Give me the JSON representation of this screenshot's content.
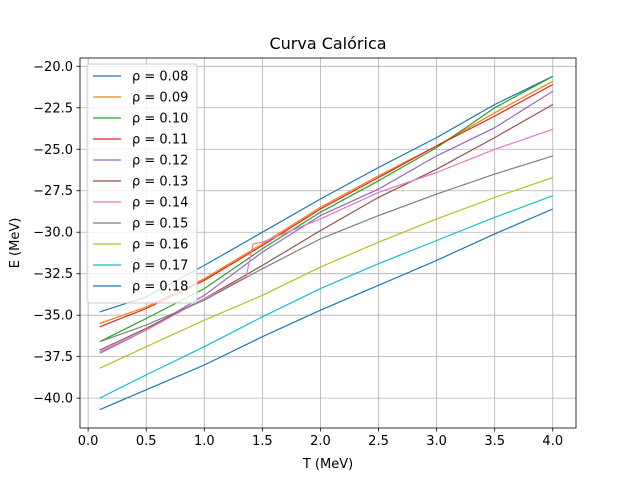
{
  "chart_data": {
    "type": "line",
    "title": "Curva Calórica",
    "xlabel": "T (MeV)",
    "ylabel": "E (MeV)",
    "xlim": [
      -0.07,
      4.2
    ],
    "ylim": [
      -41.8,
      -19.5
    ],
    "xticks": [
      0.0,
      0.5,
      1.0,
      1.5,
      2.0,
      2.5,
      3.0,
      3.5,
      4.0
    ],
    "xtick_labels": [
      "0.0",
      "0.5",
      "1.0",
      "1.5",
      "2.0",
      "2.5",
      "3.0",
      "3.5",
      "4.0"
    ],
    "yticks": [
      -40.0,
      -37.5,
      -35.0,
      -32.5,
      -30.0,
      -27.5,
      -25.0,
      -22.5,
      -20.0
    ],
    "ytick_labels": [
      "−40.0",
      "−37.5",
      "−35.0",
      "−32.5",
      "−30.0",
      "−27.5",
      "−25.0",
      "−22.5",
      "−20.0"
    ],
    "grid": true,
    "legend_position": "upper-left",
    "series": [
      {
        "name": "ρ = 0.08",
        "color": "#1f77b4",
        "x": [
          0.1,
          0.5,
          1.0,
          1.5,
          2.0,
          2.5,
          3.0,
          3.5,
          4.0
        ],
        "y": [
          -34.8,
          -33.9,
          -32.0,
          -30.0,
          -28.0,
          -26.1,
          -24.3,
          -22.3,
          -20.6
        ]
      },
      {
        "name": "ρ = 0.09",
        "color": "#ff7f0e",
        "x": [
          0.1,
          0.5,
          1.0,
          1.5,
          2.0,
          2.5,
          3.0,
          3.5,
          4.0
        ],
        "y": [
          -35.5,
          -34.5,
          -32.8,
          -30.7,
          -28.5,
          -26.6,
          -24.8,
          -22.8,
          -20.9
        ]
      },
      {
        "name": "ρ = 0.10",
        "color": "#2ca02c",
        "x": [
          0.1,
          0.5,
          1.0,
          1.5,
          2.0,
          2.5,
          3.0,
          3.5,
          4.0
        ],
        "y": [
          -36.6,
          -35.2,
          -33.4,
          -31.0,
          -28.8,
          -26.9,
          -24.9,
          -22.5,
          -20.6
        ]
      },
      {
        "name": "ρ = 0.11",
        "color": "#d62728",
        "x": [
          0.1,
          0.5,
          1.0,
          1.5,
          2.0,
          2.5,
          3.0,
          3.5,
          4.0
        ],
        "y": [
          -35.7,
          -34.6,
          -32.9,
          -30.8,
          -28.6,
          -26.7,
          -24.8,
          -23.0,
          -21.1
        ]
      },
      {
        "name": "ρ = 0.12",
        "color": "#9467bd",
        "x": [
          0.1,
          0.5,
          1.0,
          1.5,
          2.0,
          2.5,
          3.0,
          3.5,
          4.0
        ],
        "y": [
          -37.3,
          -35.9,
          -33.8,
          -31.2,
          -29.0,
          -27.4,
          -25.4,
          -23.7,
          -21.5
        ]
      },
      {
        "name": "ρ = 0.13",
        "color": "#8c564b",
        "x": [
          0.1,
          0.5,
          1.0,
          1.5,
          2.0,
          2.5,
          3.0,
          3.5,
          4.0
        ],
        "y": [
          -37.1,
          -35.8,
          -34.0,
          -32.0,
          -29.9,
          -27.9,
          -26.2,
          -24.3,
          -22.3
        ]
      },
      {
        "name": "ρ = 0.14",
        "color": "#e377c2",
        "x": [
          0.1,
          0.5,
          1.0,
          1.36,
          1.42,
          1.5,
          2.0,
          2.5,
          3.0,
          3.5,
          4.0
        ],
        "y": [
          -37.2,
          -35.9,
          -34.0,
          -32.7,
          -30.7,
          -30.6,
          -29.2,
          -27.6,
          -26.4,
          -25.0,
          -23.8
        ]
      },
      {
        "name": "ρ = 0.15",
        "color": "#7f7f7f",
        "x": [
          0.1,
          0.5,
          1.0,
          1.5,
          2.0,
          2.5,
          3.0,
          3.5,
          4.0
        ],
        "y": [
          -36.6,
          -35.6,
          -34.1,
          -32.2,
          -30.4,
          -29.0,
          -27.7,
          -26.5,
          -25.4
        ]
      },
      {
        "name": "ρ = 0.16",
        "color": "#bcbd22",
        "x": [
          0.1,
          0.5,
          1.0,
          1.5,
          2.0,
          2.5,
          3.0,
          3.5,
          4.0
        ],
        "y": [
          -38.2,
          -36.9,
          -35.3,
          -33.8,
          -32.1,
          -30.6,
          -29.2,
          -27.9,
          -26.7
        ]
      },
      {
        "name": "ρ = 0.17",
        "color": "#17becf",
        "x": [
          0.1,
          0.5,
          1.0,
          1.5,
          2.0,
          2.5,
          3.0,
          3.5,
          4.0
        ],
        "y": [
          -40.0,
          -38.6,
          -36.9,
          -35.1,
          -33.4,
          -31.9,
          -30.5,
          -29.1,
          -27.8
        ]
      },
      {
        "name": "ρ = 0.18",
        "color": "#1f77b4",
        "x": [
          0.1,
          0.5,
          1.0,
          1.5,
          2.0,
          2.5,
          3.0,
          3.5,
          4.0
        ],
        "y": [
          -40.7,
          -39.5,
          -38.0,
          -36.3,
          -34.7,
          -33.2,
          -31.7,
          -30.1,
          -28.6
        ]
      }
    ]
  }
}
